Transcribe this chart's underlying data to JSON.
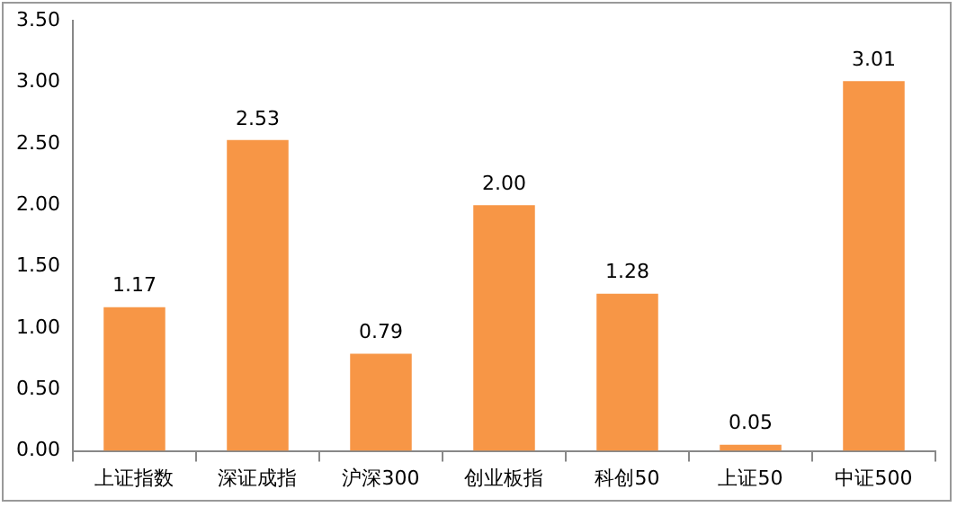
{
  "chart_data": {
    "type": "bar",
    "categories": [
      "上证指数",
      "深证成指",
      "沪深300",
      "创业板指",
      "科创50",
      "上证50",
      "中证500"
    ],
    "values": [
      1.17,
      2.53,
      0.79,
      2.0,
      1.28,
      0.05,
      3.01
    ],
    "color": "#f79646",
    "value_labels": [
      "1.17",
      "2.53",
      "0.79",
      "2.00",
      "1.28",
      "0.05",
      "3.01"
    ],
    "ylim": [
      0,
      3.5
    ],
    "yticks": [
      {
        "value": 0,
        "label": "0.00"
      },
      {
        "value": 0.5,
        "label": "0.50"
      },
      {
        "value": 1,
        "label": "1.00"
      },
      {
        "value": 1.5,
        "label": "1.50"
      },
      {
        "value": 2,
        "label": "2.00"
      },
      {
        "value": 2.5,
        "label": "2.50"
      },
      {
        "value": 3,
        "label": "3.00"
      },
      {
        "value": 3.5,
        "label": "3.50"
      }
    ],
    "grid": false,
    "legend": false
  }
}
